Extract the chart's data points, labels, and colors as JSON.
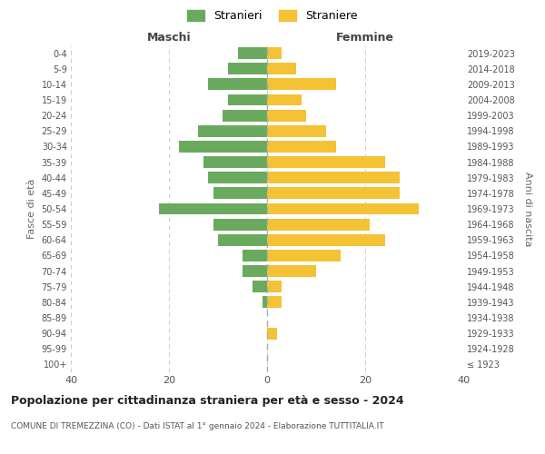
{
  "age_groups": [
    "100+",
    "95-99",
    "90-94",
    "85-89",
    "80-84",
    "75-79",
    "70-74",
    "65-69",
    "60-64",
    "55-59",
    "50-54",
    "45-49",
    "40-44",
    "35-39",
    "30-34",
    "25-29",
    "20-24",
    "15-19",
    "10-14",
    "5-9",
    "0-4"
  ],
  "birth_years": [
    "≤ 1923",
    "1924-1928",
    "1929-1933",
    "1934-1938",
    "1939-1943",
    "1944-1948",
    "1949-1953",
    "1954-1958",
    "1959-1963",
    "1964-1968",
    "1969-1973",
    "1974-1978",
    "1979-1983",
    "1984-1988",
    "1989-1993",
    "1994-1998",
    "1999-2003",
    "2004-2008",
    "2009-2013",
    "2014-2018",
    "2019-2023"
  ],
  "maschi": [
    0,
    0,
    0,
    0,
    1,
    3,
    5,
    5,
    10,
    11,
    22,
    11,
    12,
    13,
    18,
    14,
    9,
    8,
    12,
    8,
    6
  ],
  "femmine": [
    0,
    0,
    2,
    0,
    3,
    3,
    10,
    15,
    24,
    21,
    31,
    27,
    27,
    24,
    14,
    12,
    8,
    7,
    14,
    6,
    3
  ],
  "color_maschi": "#6aaa5f",
  "color_femmine": "#f5c135",
  "title": "Popolazione per cittadinanza straniera per età e sesso - 2024",
  "subtitle": "COMUNE DI TREMEZZINA (CO) - Dati ISTAT al 1° gennaio 2024 - Elaborazione TUTTITALIA.IT",
  "ylabel_left": "Fasce di età",
  "ylabel_right": "Anni di nascita",
  "xlabel_left": "Maschi",
  "xlabel_right": "Femmine",
  "legend_maschi": "Stranieri",
  "legend_femmine": "Straniere",
  "xlim": 40,
  "background_color": "#ffffff",
  "grid_color": "#cccccc"
}
